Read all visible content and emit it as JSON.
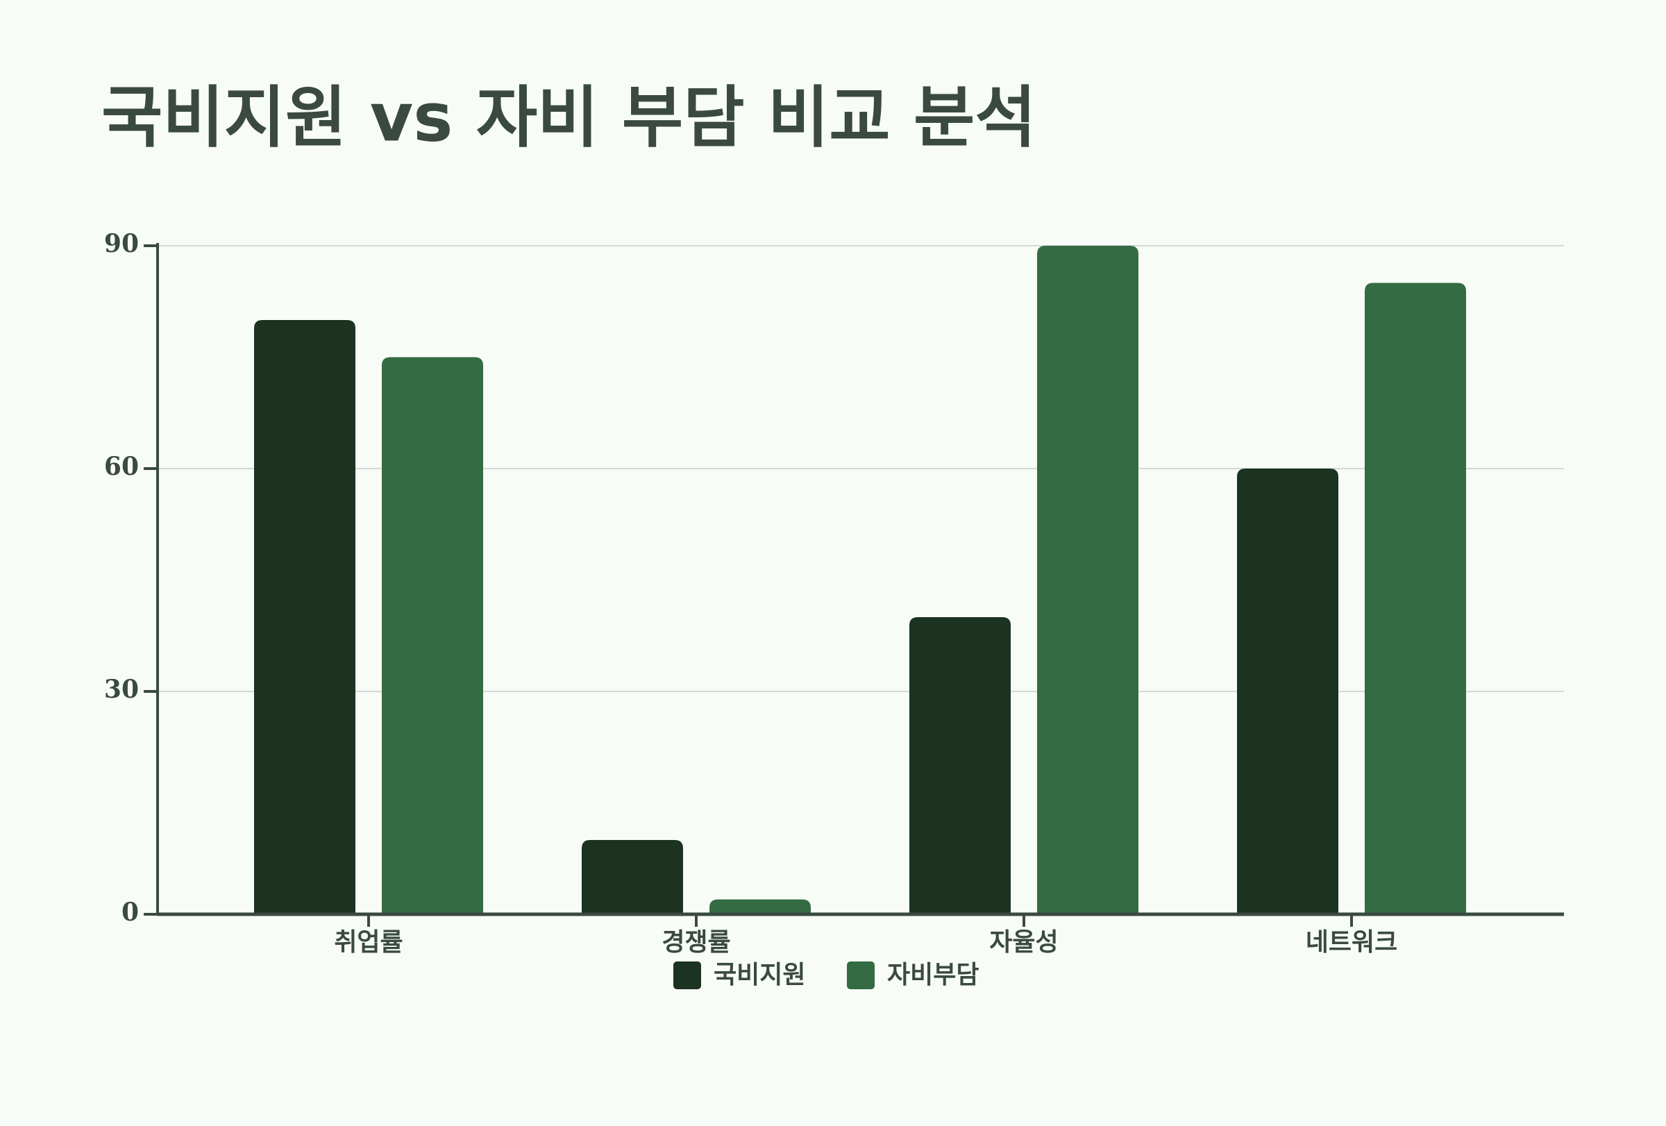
{
  "chart_data": {
    "type": "bar",
    "title": "국비지원 vs 자비 부담 비교 분석",
    "categories": [
      "취업률",
      "경쟁률",
      "자율성",
      "네트워크"
    ],
    "series": [
      {
        "name": "국비지원",
        "color": "#1b3320",
        "values": [
          80,
          10,
          40,
          60
        ]
      },
      {
        "name": "자비부담",
        "color": "#346b43",
        "values": [
          75,
          2,
          90,
          85
        ]
      }
    ],
    "ylim": [
      0,
      90
    ],
    "yticks": [
      0,
      30,
      60,
      90
    ],
    "grid": true
  }
}
